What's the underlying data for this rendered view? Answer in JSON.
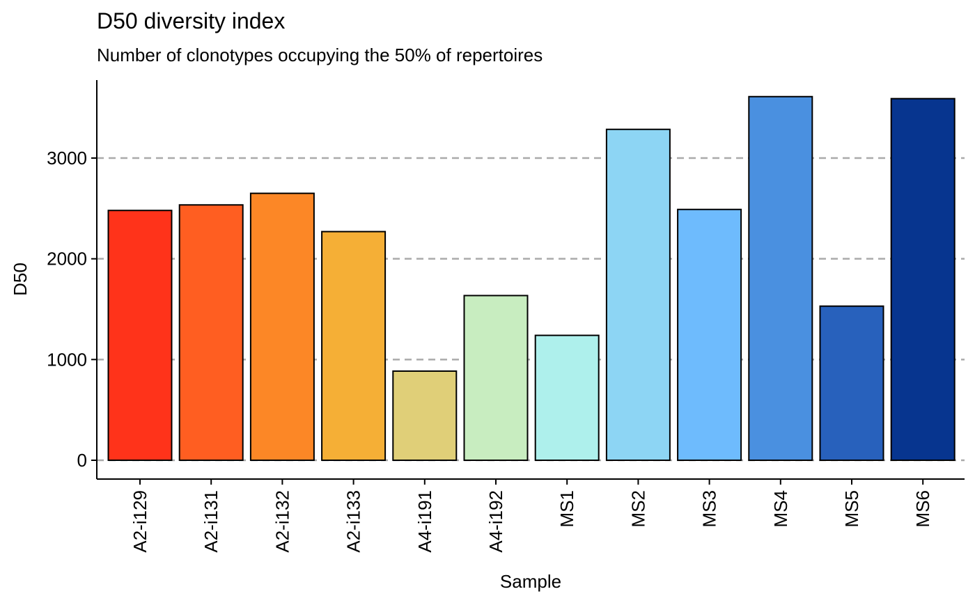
{
  "chart_data": {
    "type": "bar",
    "title": "D50 diversity index",
    "subtitle": "Number of clonotypes occupying the 50% of repertoires",
    "xlabel": "Sample",
    "ylabel": "D50",
    "categories": [
      "A2-i129",
      "A2-i131",
      "A2-i132",
      "A2-i133",
      "A4-i191",
      "A4-i192",
      "MS1",
      "MS2",
      "MS3",
      "MS4",
      "MS5",
      "MS6"
    ],
    "values": [
      2480,
      2535,
      2650,
      2270,
      885,
      1635,
      1240,
      3285,
      2490,
      3610,
      1530,
      3590
    ],
    "colors": [
      "#FF331A",
      "#FF5E21",
      "#FC8726",
      "#F5AF36",
      "#E0CF78",
      "#C8EDC0",
      "#AEF0EC",
      "#8DD5F4",
      "#6EBBFD",
      "#4A90E0",
      "#2861BC",
      "#07358F"
    ],
    "yticks": [
      0,
      1000,
      2000,
      3000
    ],
    "ylim": [
      -180,
      3760
    ],
    "grid": "horizontal dashed"
  }
}
